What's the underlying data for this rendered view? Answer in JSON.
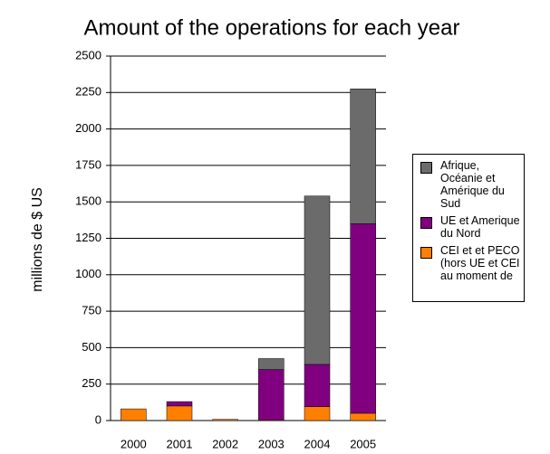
{
  "chart_data": {
    "type": "stacked_bar",
    "title": "Amount of the operations for each year",
    "y_label": "millions de $ US",
    "categories": [
      "2000",
      "2001",
      "2002",
      "2003",
      "2004",
      "2005"
    ],
    "series": [
      {
        "name": "Afrique, Océanie et Amérique du Sud",
        "color": "#6b6b6b",
        "values": [
          0,
          0,
          0,
          75,
          1155,
          925
        ]
      },
      {
        "name": "UE et Amerique du Nord",
        "color": "#800080",
        "values": [
          0,
          30,
          0,
          345,
          290,
          1300
        ]
      },
      {
        "name": "CEI et et PECO (hors UE et CEI au moment de",
        "color": "#ff8000",
        "values": [
          80,
          100,
          8,
          5,
          95,
          50
        ]
      }
    ],
    "ylim": [
      0,
      2500
    ],
    "yticks": [
      0,
      250,
      500,
      750,
      1000,
      1250,
      1500,
      1750,
      2000,
      2250,
      2500
    ],
    "grid": true
  }
}
